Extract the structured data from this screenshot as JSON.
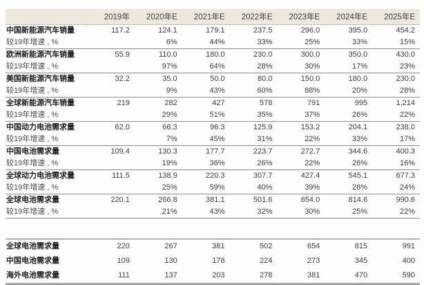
{
  "table": {
    "columns": [
      "2019年",
      "2020年E",
      "2021年E",
      "2022年E",
      "2023年E",
      "2024年E",
      "2025年E"
    ],
    "rows": [
      {
        "label": "中国新能源汽车销量",
        "type": "main",
        "values": [
          "117.2",
          "124.1",
          "179.1",
          "237.5",
          "296.0",
          "395.0",
          "454.2"
        ]
      },
      {
        "label": "较19年增速 , %",
        "type": "growth",
        "values": [
          "",
          "6%",
          "44%",
          "33%",
          "25%",
          "33%",
          "15%"
        ]
      },
      {
        "label": "欧洲新能源汽车销量",
        "type": "main",
        "values": [
          "55.9",
          "110.0",
          "180.0",
          "230.0",
          "300.0",
          "350.0",
          "430.0"
        ]
      },
      {
        "label": "较19年增速 , %",
        "type": "growth",
        "values": [
          "",
          "97%",
          "64%",
          "28%",
          "30%",
          "17%",
          "23%"
        ]
      },
      {
        "label": "美国新能源汽车销量",
        "type": "main",
        "values": [
          "32.2",
          "35.0",
          "50.0",
          "80.0",
          "150.0",
          "180.0",
          "230.0"
        ]
      },
      {
        "label": "较19年增速 , %",
        "type": "growth",
        "values": [
          "",
          "9%",
          "43%",
          "60%",
          "88%",
          "20%",
          "28%"
        ]
      },
      {
        "label": "全球新能源汽车销量",
        "type": "main",
        "values": [
          "219",
          "282",
          "427",
          "578",
          "791",
          "995",
          "1,214"
        ]
      },
      {
        "label": "较19年增速 , %",
        "type": "growth",
        "values": [
          "",
          "29%",
          "51%",
          "35%",
          "37%",
          "26%",
          "22%"
        ]
      },
      {
        "label": "中国动力电池需求量",
        "type": "main",
        "values": [
          "62.0",
          "66.3",
          "96.3",
          "125.9",
          "153.2",
          "204.1",
          "238.0"
        ]
      },
      {
        "label": "较19年增速 , %",
        "type": "growth",
        "values": [
          "",
          "7%",
          "45%",
          "31%",
          "22%",
          "33%",
          "17%"
        ]
      },
      {
        "label": "中国电池需求量",
        "type": "main",
        "values": [
          "109.4",
          "130.3",
          "177.7",
          "223.7",
          "272.7",
          "344.6",
          "400.3"
        ]
      },
      {
        "label": "较19年增速 , %",
        "type": "growth",
        "values": [
          "",
          "19%",
          "36%",
          "26%",
          "22%",
          "26%",
          "16%"
        ]
      },
      {
        "label": "全球动力电池需求量",
        "type": "main",
        "values": [
          "111.5",
          "138.9",
          "220.3",
          "307.7",
          "427.4",
          "545.1",
          "677.3"
        ]
      },
      {
        "label": "较19年增速 , %",
        "type": "growth",
        "values": [
          "",
          "25%",
          "59%",
          "40%",
          "39%",
          "28%",
          "24%"
        ]
      },
      {
        "label": "全球电池需求量",
        "type": "main",
        "values": [
          "220.1",
          "266.8",
          "381.1",
          "501.6",
          "654.0",
          "814.6",
          "990.6"
        ]
      },
      {
        "label": "较19年增速 , %",
        "type": "growth",
        "values": [
          "",
          "21%",
          "43%",
          "32%",
          "30%",
          "25%",
          "22%"
        ]
      }
    ]
  },
  "summary_table": {
    "rows": [
      {
        "label": "全球电池需求量",
        "values": [
          "220",
          "267",
          "381",
          "502",
          "654",
          "815",
          "991"
        ]
      },
      {
        "label": "中国电池需求量",
        "values": [
          "109",
          "130",
          "178",
          "224",
          "273",
          "345",
          "400"
        ]
      },
      {
        "label": "海外电池需求量",
        "values": [
          "111",
          "137",
          "203",
          "278",
          "381",
          "470",
          "590"
        ]
      }
    ]
  },
  "colors": {
    "header_bg": "#ece8db",
    "pair_line": "#8c8c8c",
    "summary_line": "#6e6e6e",
    "text": "#3d3d3d",
    "label_text": "#1e1e1e"
  }
}
